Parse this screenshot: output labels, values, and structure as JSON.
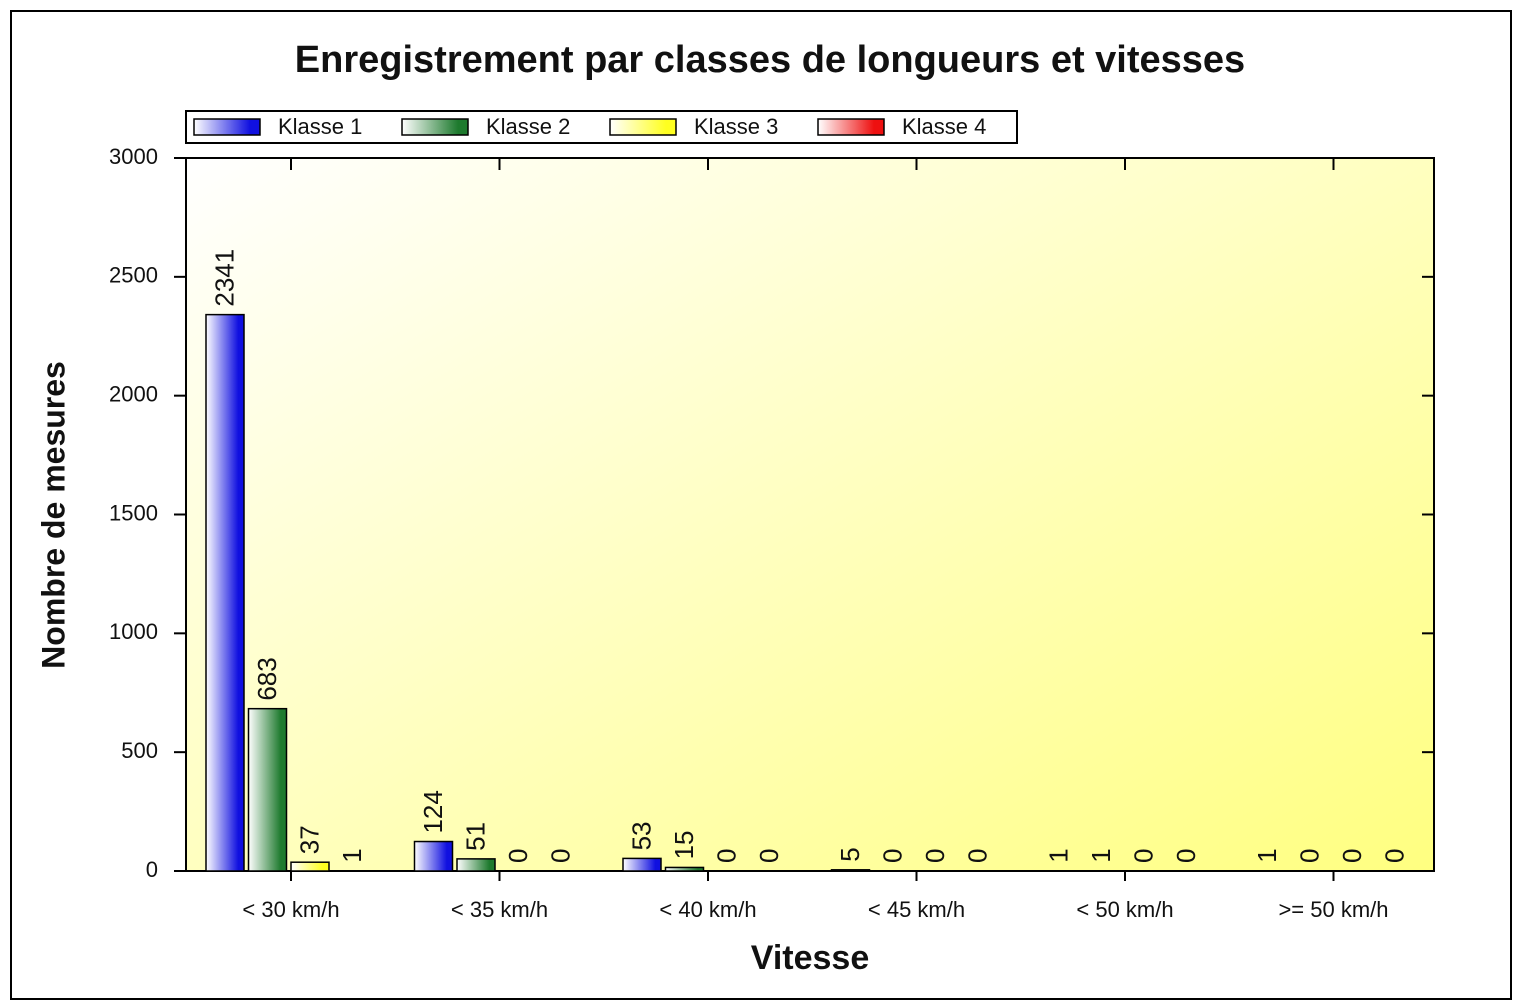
{
  "chart_data": {
    "type": "bar",
    "title": "Enregistrement par classes de longueurs et vitesses",
    "x_label": "Vitesse",
    "y_label": "Nombre de mesures",
    "categories": [
      "< 30 km/h",
      "< 35 km/h",
      "< 40 km/h",
      "< 45 km/h",
      "< 50 km/h",
      ">= 50 km/h"
    ],
    "series": [
      {
        "name": "Klasse 1",
        "color": "#1010e0",
        "values": [
          2341,
          124,
          53,
          5,
          1,
          1
        ]
      },
      {
        "name": "Klasse 2",
        "color": "#1e7a2e",
        "values": [
          683,
          51,
          15,
          0,
          1,
          0
        ]
      },
      {
        "name": "Klasse 3",
        "color": "#ffff20",
        "values": [
          37,
          0,
          0,
          0,
          0,
          0
        ]
      },
      {
        "name": "Klasse 4",
        "color": "#ee1010",
        "values": [
          1,
          0,
          0,
          0,
          0,
          0
        ]
      }
    ],
    "ylim": [
      0,
      3000
    ],
    "yticks": [
      0,
      500,
      1000,
      1500,
      2000,
      2500,
      3000
    ]
  }
}
